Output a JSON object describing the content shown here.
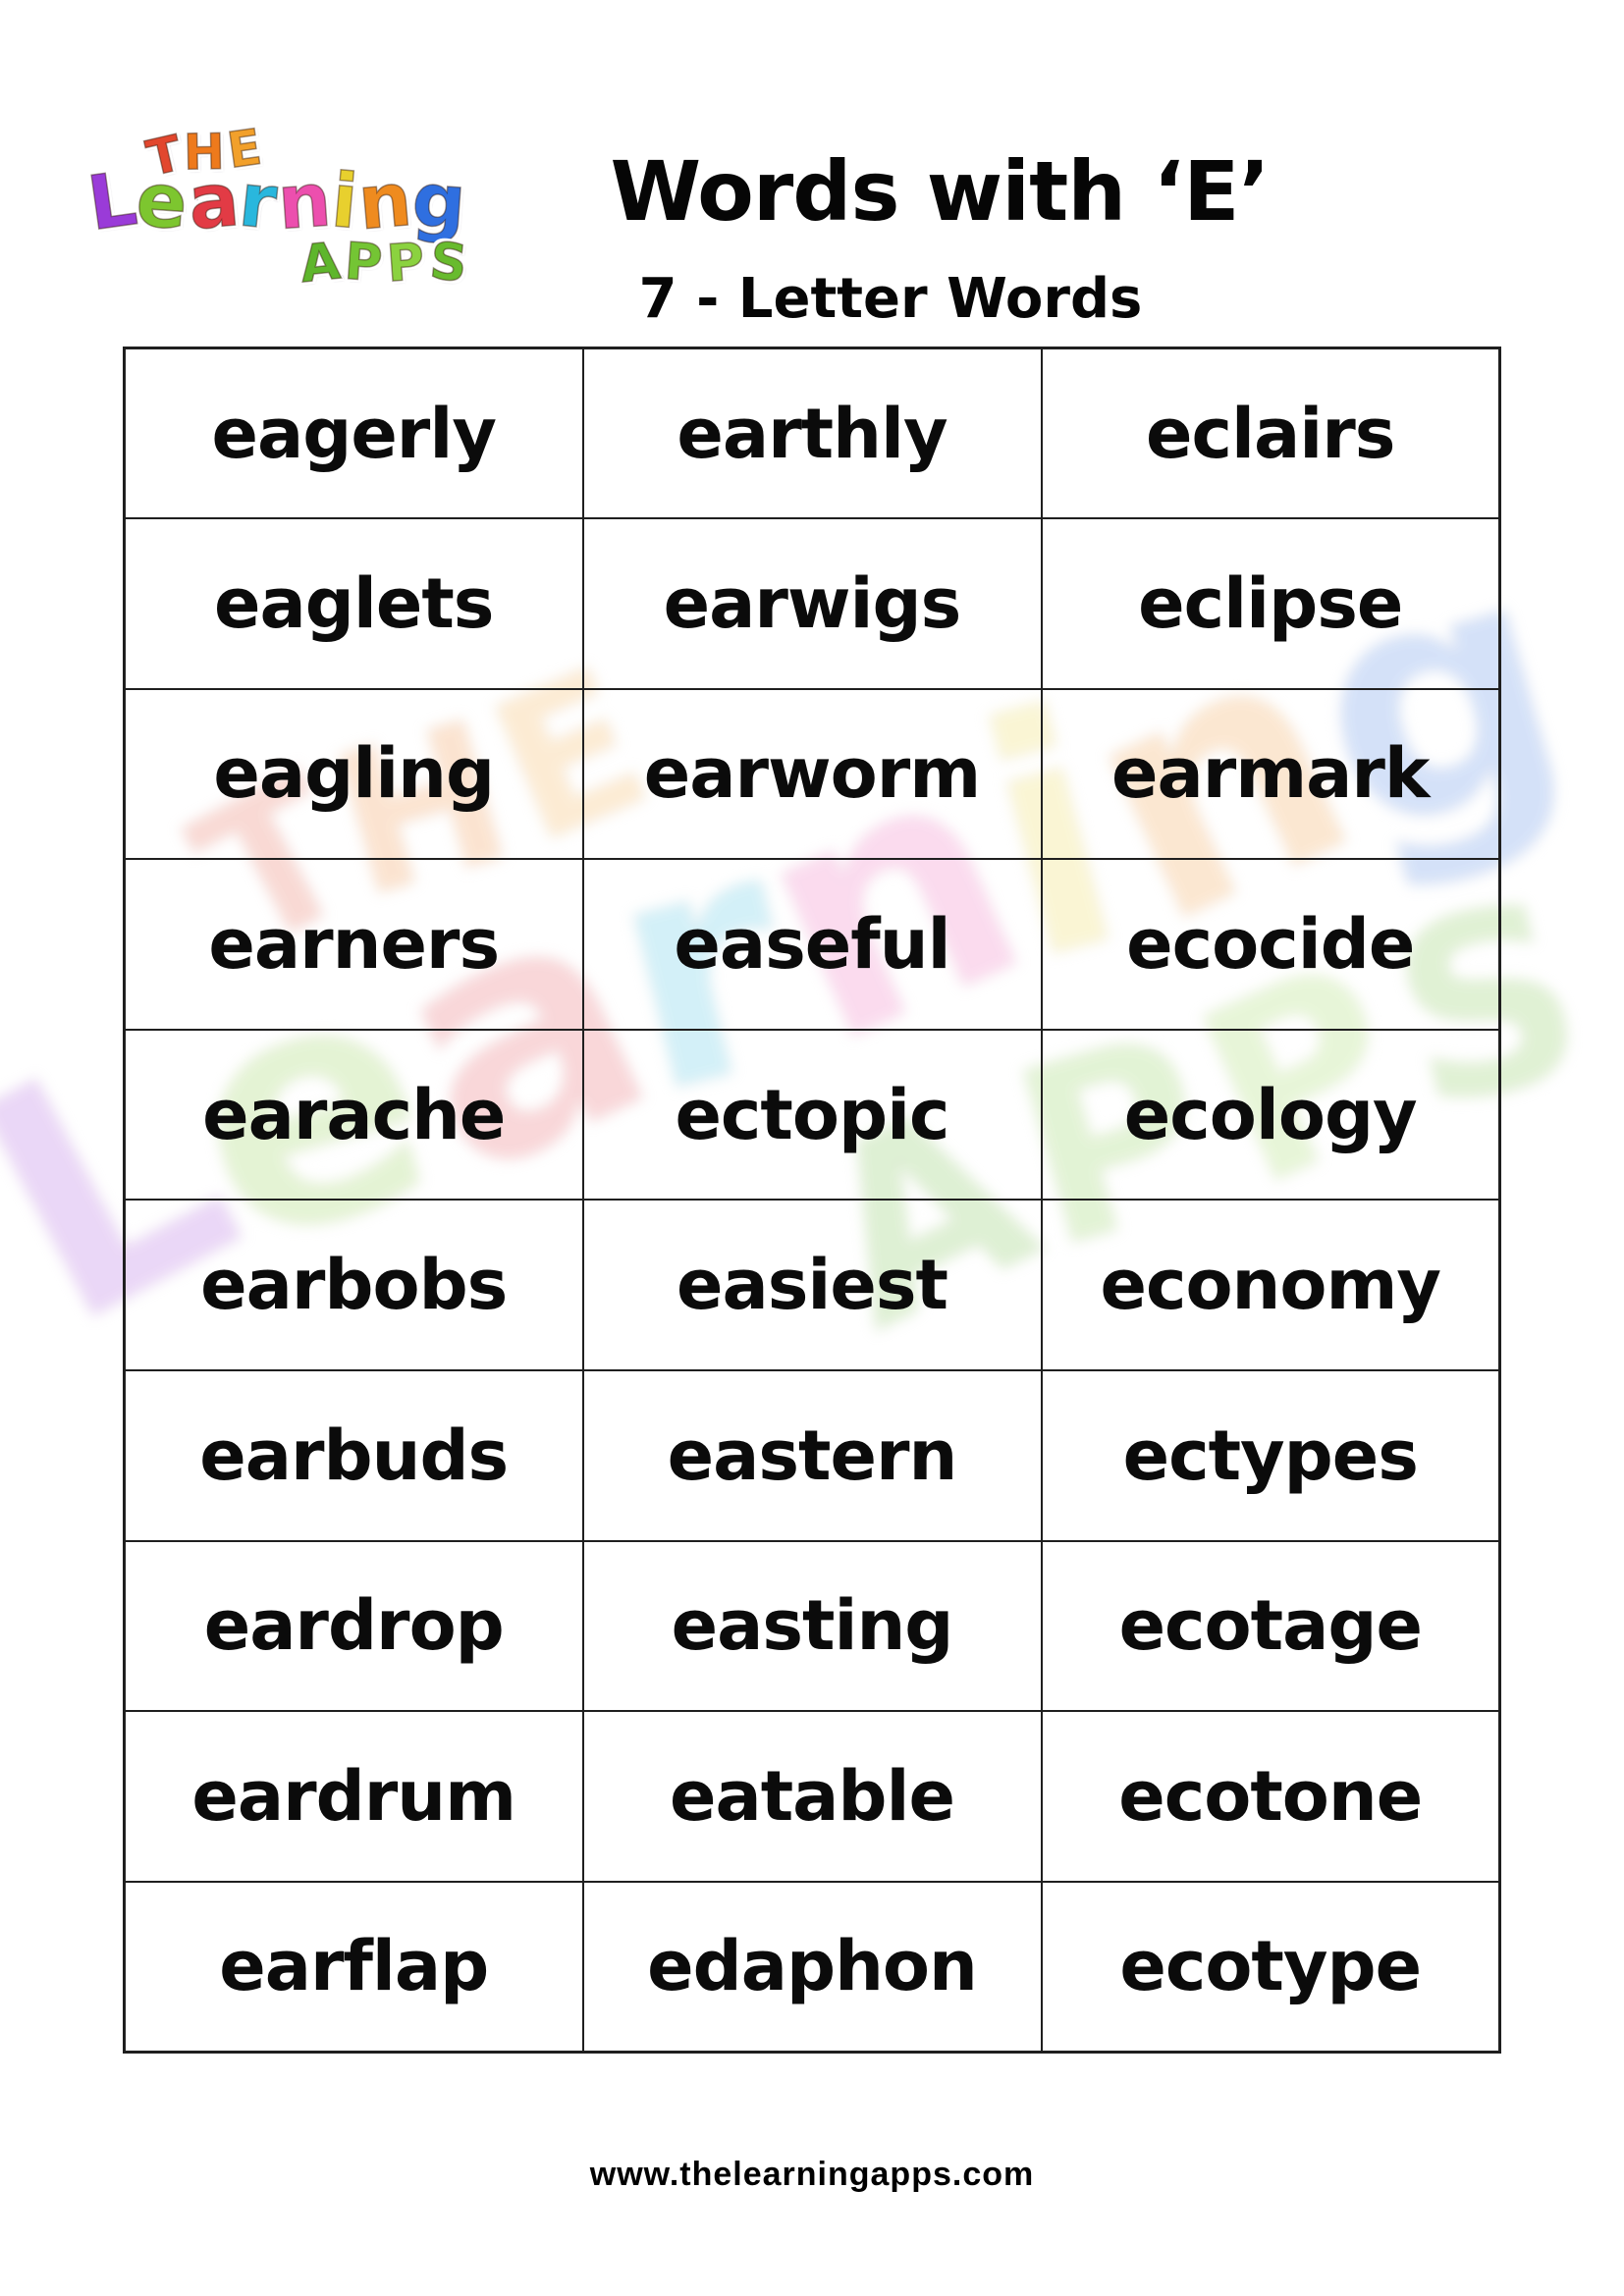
{
  "page": {
    "title": "Words with ‘E’",
    "subtitle": "7 - Letter Words",
    "footer_url": "www.thelearningapps.com"
  },
  "logo": {
    "the_letters": [
      {
        "ch": "T",
        "color": "#e2472e",
        "rot": -8
      },
      {
        "ch": "H",
        "color": "#ee7a1c",
        "rot": 4
      },
      {
        "ch": "E",
        "color": "#f2a02b",
        "rot": -3
      }
    ],
    "learning_letters": [
      {
        "ch": "L",
        "color": "#9a3bd8",
        "rot": -8
      },
      {
        "ch": "e",
        "color": "#7dc62f",
        "rot": 4
      },
      {
        "ch": "a",
        "color": "#e23b45",
        "rot": -5
      },
      {
        "ch": "r",
        "color": "#29b7dd",
        "rot": 6
      },
      {
        "ch": "n",
        "color": "#ec4fae",
        "rot": -4
      },
      {
        "ch": "i",
        "color": "#e8d02e",
        "rot": 5
      },
      {
        "ch": "n",
        "color": "#ef8b1f",
        "rot": -5
      },
      {
        "ch": "g",
        "color": "#2f6fe0",
        "rot": 4
      }
    ],
    "apps_letters": [
      {
        "ch": "A",
        "color": "#5eb62c",
        "rot": -6
      },
      {
        "ch": "P",
        "color": "#74c534",
        "rot": 4
      },
      {
        "ch": "P",
        "color": "#8bd23f",
        "rot": -4
      },
      {
        "ch": "S",
        "color": "#68bb2e",
        "rot": 6
      }
    ]
  },
  "table": {
    "columns": 3,
    "rows": [
      [
        "eagerly",
        "earthly",
        "eclairs"
      ],
      [
        "eaglets",
        "earwigs",
        "eclipse"
      ],
      [
        "eagling",
        "earworm",
        "earmark"
      ],
      [
        "earners",
        "easeful",
        "ecocide"
      ],
      [
        "earache",
        "ectopic",
        "ecology"
      ],
      [
        "earbobs",
        "easiest",
        "economy"
      ],
      [
        "earbuds",
        "eastern",
        "ectypes"
      ],
      [
        "eardrop",
        "easting",
        "ecotage"
      ],
      [
        "eardrum",
        "eatable",
        "ecotone"
      ],
      [
        "earflap",
        "edaphon",
        "ecotype"
      ]
    ]
  },
  "colors": {
    "text": "#0b0b0b",
    "border": "#1f1f1f",
    "background": "#ffffff"
  }
}
